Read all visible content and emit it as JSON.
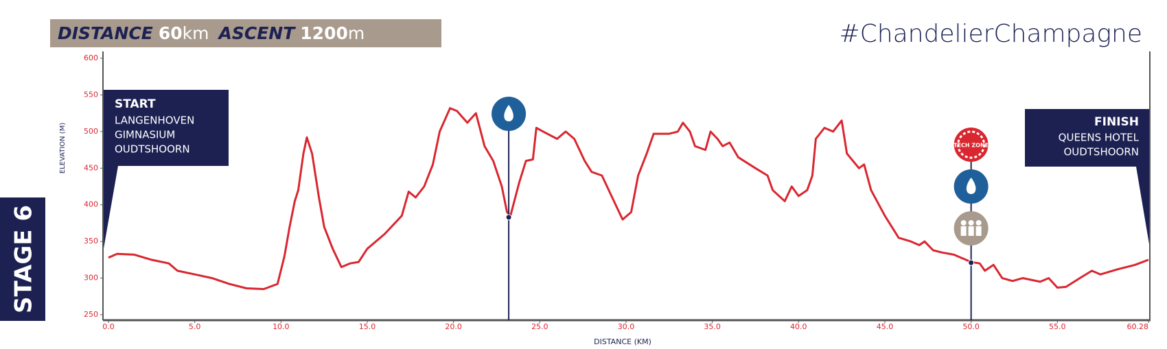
{
  "chart_data": {
    "type": "line",
    "header": {
      "distance_label": "DISTANCE",
      "distance": "60",
      "distance_unit": "km",
      "ascent_label": "ASCENT",
      "ascent": "1200",
      "ascent_unit": "m"
    },
    "hashtag": "#ChandelierChampagne",
    "stage": "STAGE 6",
    "start": {
      "title": "START",
      "lines": [
        "LANGENHOVEN",
        "GIMNASIUM",
        "OUDTSHOORN"
      ]
    },
    "finish": {
      "title": "FINISH",
      "lines": [
        "QUEENS HOTEL",
        "OUDTSHOORN"
      ]
    },
    "xlabel": "DISTANCE (KM)",
    "ylabel": "ELEVATION (M)",
    "color": "#d9262f",
    "xlim": [
      0,
      60.28
    ],
    "ylim": [
      250,
      600
    ],
    "xticks": [
      {
        "value": 0,
        "label": "0.0"
      },
      {
        "value": 5,
        "label": "5.0"
      },
      {
        "value": 10,
        "label": "10.0"
      },
      {
        "value": 15,
        "label": "15.0"
      },
      {
        "value": 20,
        "label": "20.0"
      },
      {
        "value": 25,
        "label": "25.0"
      },
      {
        "value": 30,
        "label": "30.0"
      },
      {
        "value": 35,
        "label": "35.0"
      },
      {
        "value": 40,
        "label": "40.0"
      },
      {
        "value": 45,
        "label": "45.0"
      },
      {
        "value": 50,
        "label": "50.0"
      },
      {
        "value": 55,
        "label": "55.0"
      },
      60.28
    ],
    "yticks": [
      250,
      300,
      350,
      400,
      450,
      500,
      550,
      600
    ],
    "x": [
      0,
      0.5,
      1.5,
      2.5,
      3.5,
      4.0,
      5.0,
      6.0,
      7.0,
      8.0,
      9.0,
      9.8,
      10.2,
      10.5,
      10.8,
      11.0,
      11.3,
      11.5,
      11.8,
      12.2,
      12.5,
      13.0,
      13.5,
      14.0,
      14.5,
      15.0,
      16.0,
      17.0,
      17.4,
      17.8,
      18.3,
      18.8,
      19.2,
      19.8,
      20.2,
      20.8,
      21.3,
      21.8,
      22.3,
      22.8,
      23.1,
      23.3,
      23.8,
      24.2,
      24.6,
      24.8,
      25.2,
      26.0,
      26.5,
      27.0,
      27.6,
      28.0,
      28.6,
      29.0,
      29.5,
      29.8,
      30.3,
      30.7,
      31.2,
      31.6,
      32.5,
      33.0,
      33.3,
      33.7,
      34.0,
      34.6,
      34.9,
      35.3,
      35.6,
      36.0,
      36.5,
      37.5,
      38.2,
      38.5,
      39.2,
      39.6,
      40.0,
      40.5,
      40.8,
      41.0,
      41.5,
      42.0,
      42.5,
      42.8,
      43.5,
      43.8,
      44.2,
      45.0,
      45.8,
      46.5,
      47.0,
      47.3,
      47.8,
      48.3,
      49.0,
      49.7,
      50.0,
      50.5,
      50.8,
      51.3,
      51.8,
      52.4,
      53.0,
      54.0,
      54.5,
      55.0,
      55.5,
      56.3,
      57.0,
      57.5,
      58.5,
      59.5,
      60.28
    ],
    "values": [
      328,
      333,
      332,
      325,
      320,
      310,
      305,
      300,
      292,
      286,
      285,
      292,
      330,
      370,
      405,
      420,
      470,
      492,
      470,
      410,
      370,
      340,
      315,
      320,
      322,
      340,
      360,
      385,
      418,
      410,
      425,
      455,
      500,
      532,
      528,
      512,
      525,
      480,
      460,
      425,
      390,
      385,
      430,
      460,
      462,
      505,
      500,
      490,
      500,
      490,
      460,
      445,
      440,
      420,
      395,
      380,
      390,
      440,
      470,
      497,
      497,
      500,
      512,
      500,
      480,
      475,
      500,
      490,
      480,
      485,
      465,
      450,
      440,
      420,
      405,
      425,
      412,
      420,
      440,
      490,
      505,
      500,
      515,
      470,
      450,
      455,
      420,
      385,
      355,
      350,
      345,
      350,
      338,
      335,
      332,
      325,
      322,
      320,
      310,
      318,
      300,
      296,
      300,
      295,
      300,
      287,
      288,
      300,
      310,
      305,
      312,
      318,
      325
    ],
    "markers": [
      {
        "x": 23.2,
        "value": 383,
        "icons": [
          "water"
        ]
      },
      {
        "x": 50.0,
        "value": 321,
        "icons": [
          "tech",
          "water",
          "support"
        ]
      }
    ],
    "tech_zone": "TECH ZONE"
  }
}
